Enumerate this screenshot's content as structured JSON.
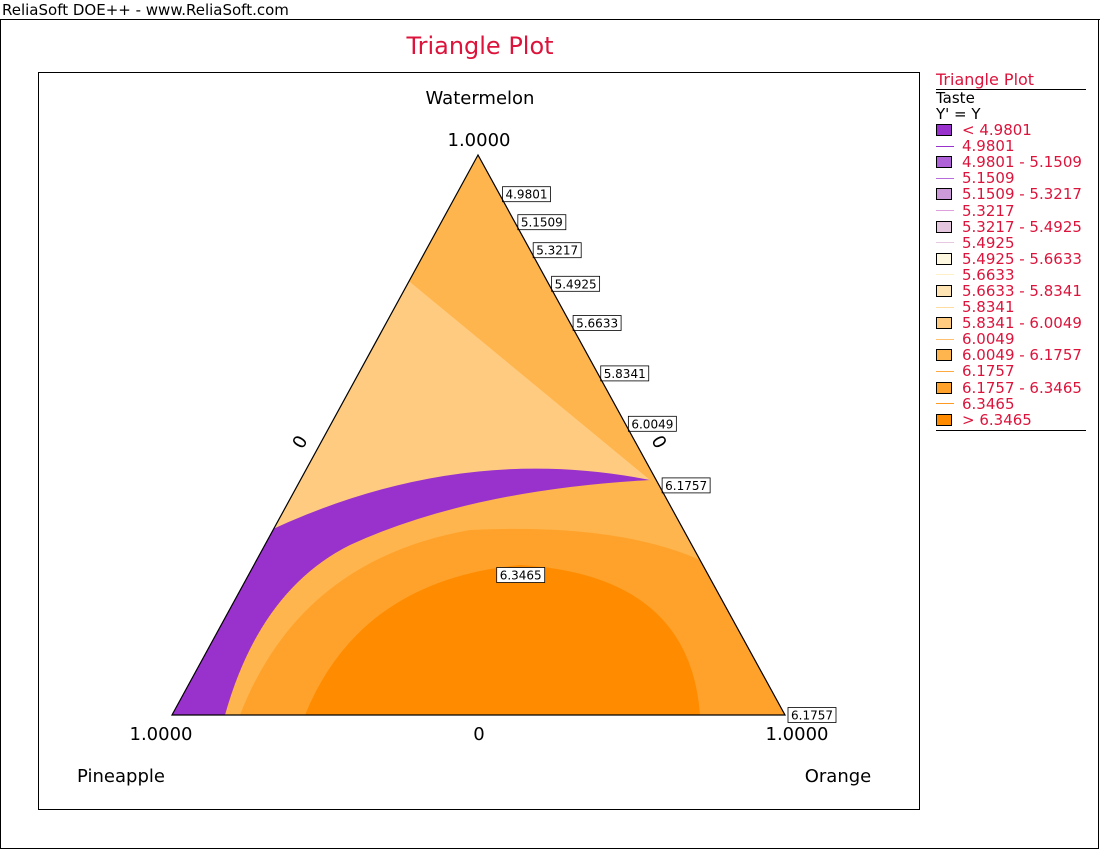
{
  "window": {
    "title": "ReliaSoft DOE++ - www.ReliaSoft.com"
  },
  "chart_data": {
    "type": "ternary-contour",
    "title": "Triangle Plot",
    "axes": {
      "top": {
        "name": "Watermelon",
        "max_label": "1.0000",
        "zero_label": "0"
      },
      "left": {
        "name": "Pineapple",
        "max_label": "1.0000",
        "zero_label": "0"
      },
      "right": {
        "name": "Orange",
        "max_label": "1.0000",
        "zero_label": "0"
      }
    },
    "response": "Taste",
    "transform": "Y' = Y",
    "levels": [
      4.9801,
      5.1509,
      5.3217,
      5.4925,
      5.6633,
      5.8341,
      6.0049,
      6.1757,
      6.3465
    ],
    "level_labels": [
      "4.9801",
      "5.1509",
      "5.3217",
      "5.4925",
      "5.6633",
      "5.8341",
      "6.0049",
      "6.1757",
      "6.3465"
    ],
    "band_colors": [
      "#9932cc",
      "#af62d7",
      "#cc99d9",
      "#e4c7df",
      "#fff8e0",
      "#ffe4b3",
      "#ffcb80",
      "#ffb54d",
      "#ffa22b",
      "#ff8c00"
    ],
    "contour_labels": [
      {
        "text": "4.9801",
        "a": 0.93,
        "b": 0.0,
        "c": 0.07
      },
      {
        "text": "5.1509",
        "a": 0.88,
        "b": 0.0,
        "c": 0.12
      },
      {
        "text": "5.3217",
        "a": 0.83,
        "b": 0.0,
        "c": 0.17
      },
      {
        "text": "5.4925",
        "a": 0.77,
        "b": 0.0,
        "c": 0.23
      },
      {
        "text": "5.6633",
        "a": 0.7,
        "b": 0.0,
        "c": 0.3
      },
      {
        "text": "5.8341",
        "a": 0.61,
        "b": 0.0,
        "c": 0.39
      },
      {
        "text": "6.0049",
        "a": 0.52,
        "b": 0.0,
        "c": 0.48
      },
      {
        "text": "6.1757",
        "a": 0.41,
        "b": 0.0,
        "c": 0.59
      },
      {
        "text": "6.3465",
        "a": 0.25,
        "b": 0.35,
        "c": 0.4
      },
      {
        "text": "6.1757",
        "a": 0.0,
        "b": 0.0,
        "c": 1.0
      }
    ]
  },
  "legend": {
    "title": "Triangle Plot",
    "response": "Taste",
    "transform": "Y' = Y",
    "items": [
      {
        "kind": "box",
        "label": "< 4.9801",
        "color": "#9932cc"
      },
      {
        "kind": "line",
        "label": "4.9801",
        "color": "#9932cc"
      },
      {
        "kind": "box",
        "label": "4.9801 - 5.1509",
        "color": "#af62d7"
      },
      {
        "kind": "line",
        "label": "5.1509",
        "color": "#b76cd9"
      },
      {
        "kind": "box",
        "label": "5.1509 - 5.3217",
        "color": "#cc99d9"
      },
      {
        "kind": "line",
        "label": "5.3217",
        "color": "#dda0dd"
      },
      {
        "kind": "box",
        "label": "5.3217 - 5.4925",
        "color": "#e4c7df"
      },
      {
        "kind": "line",
        "label": "5.4925",
        "color": "#e8c8e0"
      },
      {
        "kind": "box",
        "label": "5.4925 - 5.6633",
        "color": "#fff8e0"
      },
      {
        "kind": "line",
        "label": "5.6633",
        "color": "#fff0c8"
      },
      {
        "kind": "box",
        "label": "5.6633 - 5.8341",
        "color": "#ffe4b3"
      },
      {
        "kind": "line",
        "label": "5.8341",
        "color": "#ffdca0"
      },
      {
        "kind": "box",
        "label": "5.8341 - 6.0049",
        "color": "#ffcb80"
      },
      {
        "kind": "line",
        "label": "6.0049",
        "color": "#ffc070"
      },
      {
        "kind": "box",
        "label": "6.0049 - 6.1757",
        "color": "#ffb54d"
      },
      {
        "kind": "line",
        "label": "6.1757",
        "color": "#ffaa40"
      },
      {
        "kind": "box",
        "label": "6.1757 - 6.3465",
        "color": "#ffa22b"
      },
      {
        "kind": "line",
        "label": "6.3465",
        "color": "#ff9a20"
      },
      {
        "kind": "box",
        "label": "> 6.3465",
        "color": "#ff8c00"
      }
    ]
  }
}
